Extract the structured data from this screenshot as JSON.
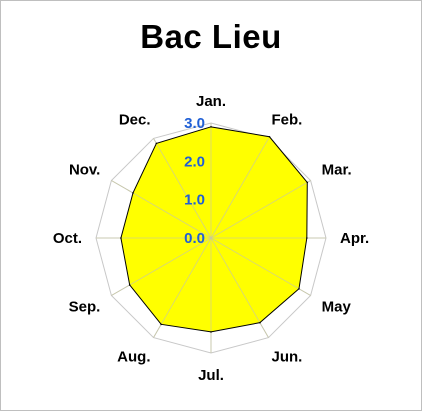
{
  "chart_data": {
    "type": "radar",
    "title": "Bac Lieu",
    "categories": [
      "Jan.",
      "Feb.",
      "Mar.",
      "Apr.",
      "May",
      "Jun.",
      "Jul.",
      "Aug.",
      "Sep.",
      "Oct.",
      "Nov.",
      "Dec."
    ],
    "series": [
      {
        "values": [
          2.9,
          3.05,
          2.9,
          2.5,
          2.65,
          2.55,
          2.45,
          2.6,
          2.45,
          2.35,
          2.35,
          2.85
        ]
      }
    ],
    "rlim": [
      0,
      3.0
    ],
    "ticks": [
      "0.0",
      "1.0",
      "2.0",
      "3.0"
    ],
    "grid": true,
    "legend": "none",
    "colors": {
      "fill": "#ffff00",
      "line": "#000000",
      "grid": "#c8c8c8",
      "tick_label": "#1f5fd6"
    }
  }
}
